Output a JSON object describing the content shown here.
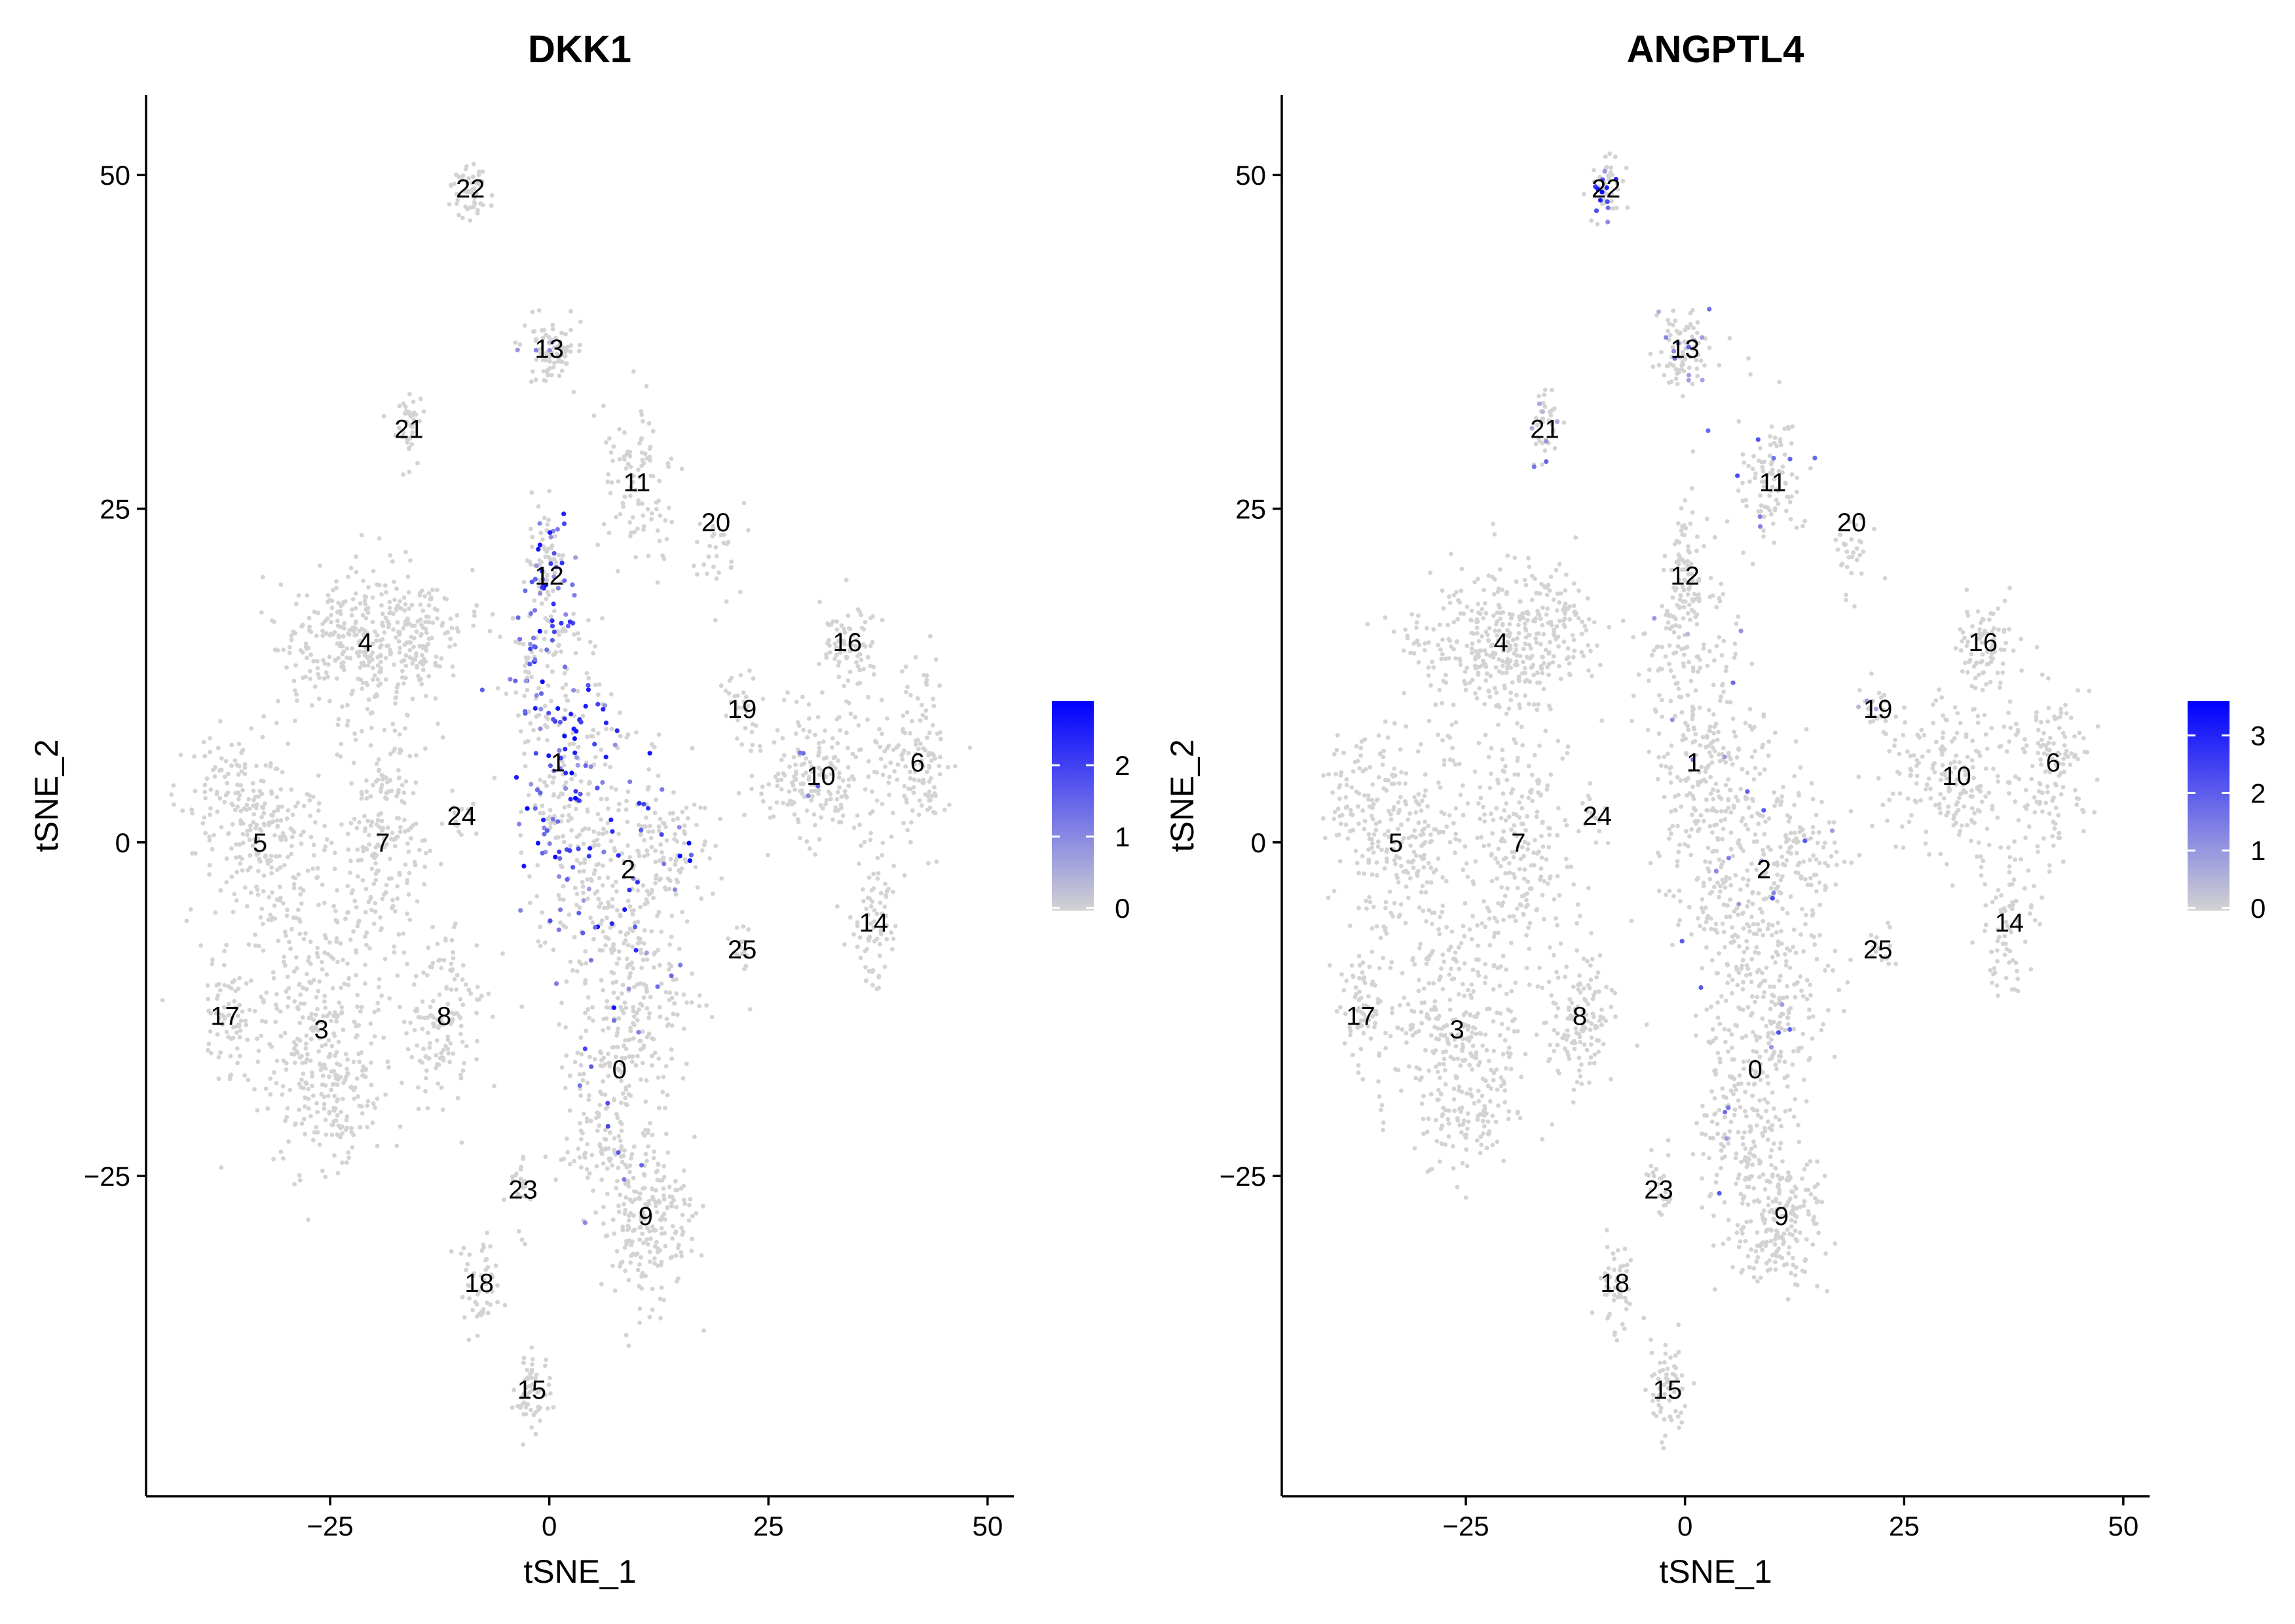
{
  "chart_data": [
    {
      "type": "scatter",
      "title": "DKK1",
      "xlabel": "tSNE_1",
      "ylabel": "tSNE_2",
      "xlim": [
        -46,
        53
      ],
      "ylim": [
        -49,
        56
      ],
      "xticks": [
        -25,
        0,
        25,
        50
      ],
      "xtick_labels": [
        "−25",
        "0",
        "25",
        "50"
      ],
      "yticks": [
        -25,
        0,
        25,
        50
      ],
      "ytick_labels": [
        "−25",
        "0",
        "25",
        "50"
      ],
      "legend": {
        "position": "right",
        "min": 0,
        "max": 2.9,
        "ticks": [
          0,
          1,
          2
        ],
        "tick_labels": [
          "0",
          "1",
          "2"
        ]
      },
      "colors": {
        "low": "#d3d3d3",
        "high": "#0000ff"
      },
      "expression_focus": "clusters 1, 12, 2 (column around tSNE_1 ≈ 0)",
      "clusters": [
        {
          "label": "0",
          "x": 8,
          "y": -17
        },
        {
          "label": "1",
          "x": 1,
          "y": 6
        },
        {
          "label": "2",
          "x": 9,
          "y": -2
        },
        {
          "label": "3",
          "x": -26,
          "y": -14
        },
        {
          "label": "4",
          "x": -21,
          "y": 15
        },
        {
          "label": "5",
          "x": -33,
          "y": 0
        },
        {
          "label": "6",
          "x": 42,
          "y": 6
        },
        {
          "label": "7",
          "x": -19,
          "y": 0
        },
        {
          "label": "8",
          "x": -12,
          "y": -13
        },
        {
          "label": "9",
          "x": 11,
          "y": -28
        },
        {
          "label": "10",
          "x": 31,
          "y": 5
        },
        {
          "label": "11",
          "x": 10,
          "y": 27
        },
        {
          "label": "12",
          "x": 0,
          "y": 20
        },
        {
          "label": "13",
          "x": 0,
          "y": 37
        },
        {
          "label": "14",
          "x": 37,
          "y": -6
        },
        {
          "label": "15",
          "x": -2,
          "y": -41
        },
        {
          "label": "16",
          "x": 34,
          "y": 15
        },
        {
          "label": "17",
          "x": -37,
          "y": -13
        },
        {
          "label": "18",
          "x": -8,
          "y": -33
        },
        {
          "label": "19",
          "x": 22,
          "y": 10
        },
        {
          "label": "20",
          "x": 19,
          "y": 24
        },
        {
          "label": "21",
          "x": -16,
          "y": 31
        },
        {
          "label": "22",
          "x": -9,
          "y": 49
        },
        {
          "label": "23",
          "x": -3,
          "y": -26
        },
        {
          "label": "24",
          "x": -10,
          "y": 2
        },
        {
          "label": "25",
          "x": 22,
          "y": -8
        }
      ]
    },
    {
      "type": "scatter",
      "title": "ANGPTL4",
      "xlabel": "tSNE_1",
      "ylabel": "tSNE_2",
      "xlim": [
        -46,
        53
      ],
      "ylim": [
        -49,
        56
      ],
      "xticks": [
        -25,
        0,
        25,
        50
      ],
      "xtick_labels": [
        "−25",
        "0",
        "25",
        "50"
      ],
      "yticks": [
        -25,
        0,
        25,
        50
      ],
      "ytick_labels": [
        "−25",
        "0",
        "25",
        "50"
      ],
      "legend": {
        "position": "right",
        "min": 0,
        "max": 3.6,
        "ticks": [
          0,
          1,
          2,
          3
        ],
        "tick_labels": [
          "0",
          "1",
          "2",
          "3"
        ]
      },
      "colors": {
        "low": "#d3d3d3",
        "high": "#0000ff"
      },
      "expression_focus": "sparse, clusters 22, 21, 13, 11",
      "clusters": [
        {
          "label": "0",
          "x": 8,
          "y": -17
        },
        {
          "label": "1",
          "x": 1,
          "y": 6
        },
        {
          "label": "2",
          "x": 9,
          "y": -2
        },
        {
          "label": "3",
          "x": -26,
          "y": -14
        },
        {
          "label": "4",
          "x": -21,
          "y": 15
        },
        {
          "label": "5",
          "x": -33,
          "y": 0
        },
        {
          "label": "6",
          "x": 42,
          "y": 6
        },
        {
          "label": "7",
          "x": -19,
          "y": 0
        },
        {
          "label": "8",
          "x": -12,
          "y": -13
        },
        {
          "label": "9",
          "x": 11,
          "y": -28
        },
        {
          "label": "10",
          "x": 31,
          "y": 5
        },
        {
          "label": "11",
          "x": 10,
          "y": 27
        },
        {
          "label": "12",
          "x": 0,
          "y": 20
        },
        {
          "label": "13",
          "x": 0,
          "y": 37
        },
        {
          "label": "14",
          "x": 37,
          "y": -6
        },
        {
          "label": "15",
          "x": -2,
          "y": -41
        },
        {
          "label": "16",
          "x": 34,
          "y": 15
        },
        {
          "label": "17",
          "x": -37,
          "y": -13
        },
        {
          "label": "18",
          "x": -8,
          "y": -33
        },
        {
          "label": "19",
          "x": 22,
          "y": 10
        },
        {
          "label": "20",
          "x": 19,
          "y": 24
        },
        {
          "label": "21",
          "x": -16,
          "y": 31
        },
        {
          "label": "22",
          "x": -9,
          "y": 49
        },
        {
          "label": "23",
          "x": -3,
          "y": -26
        },
        {
          "label": "24",
          "x": -10,
          "y": 2
        },
        {
          "label": "25",
          "x": 22,
          "y": -8
        }
      ]
    }
  ]
}
